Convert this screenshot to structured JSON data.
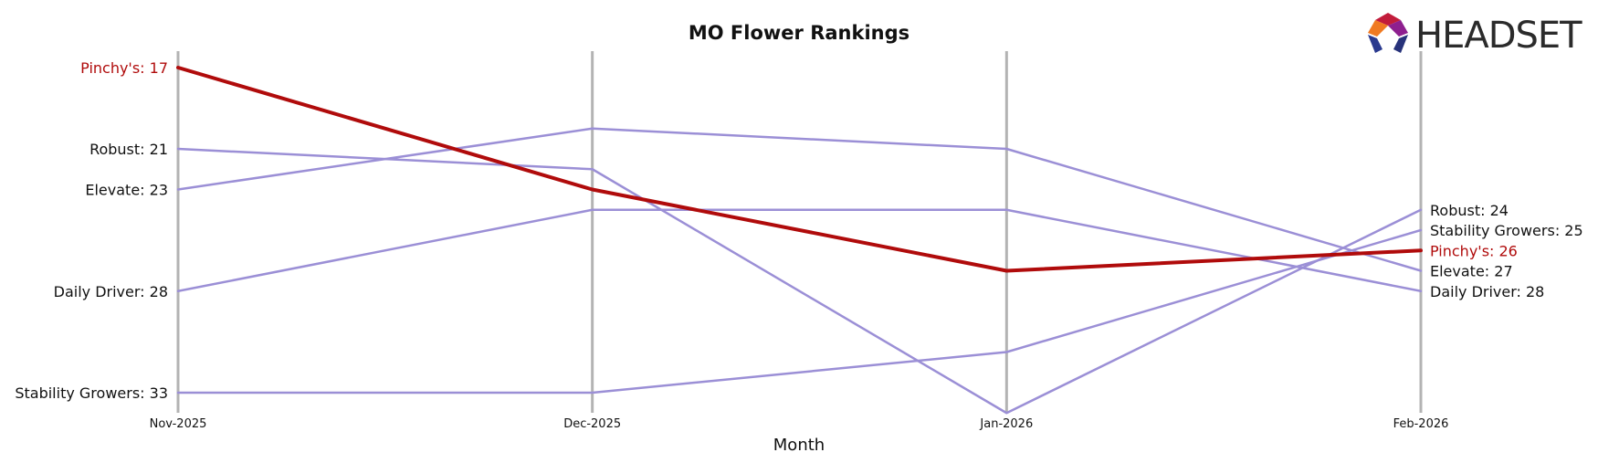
{
  "chart_data": {
    "type": "line",
    "title": "MO Flower Rankings",
    "xlabel": "Month",
    "ylabel": "",
    "categories": [
      "Nov-2025",
      "Dec-2025",
      "Jan-2026",
      "Feb-2026"
    ],
    "ylim": [
      33.9,
      16.2
    ],
    "y_inverted": true,
    "grid": false,
    "series": [
      {
        "name": "Pinchy's",
        "values": [
          17,
          23,
          27,
          26
        ],
        "color": "#b00b0b",
        "highlight": true,
        "start_label": "Pinchy's: 17",
        "end_label": "Pinchy's: 26"
      },
      {
        "name": "Robust",
        "values": [
          21,
          22,
          34,
          24
        ],
        "color": "#9b8fd6",
        "highlight": false,
        "start_label": "Robust: 21",
        "end_label": "Robust: 24"
      },
      {
        "name": "Elevate",
        "values": [
          23,
          20,
          21,
          27
        ],
        "color": "#9b8fd6",
        "highlight": false,
        "start_label": "Elevate: 23",
        "end_label": "Elevate: 27"
      },
      {
        "name": "Daily Driver",
        "values": [
          28,
          24,
          24,
          28
        ],
        "color": "#9b8fd6",
        "highlight": false,
        "start_label": "Daily Driver: 28",
        "end_label": "Daily Driver: 28"
      },
      {
        "name": "Stability Growers",
        "values": [
          33,
          33,
          31,
          25
        ],
        "color": "#9b8fd6",
        "highlight": false,
        "start_label": "Stability Growers: 33",
        "end_label": "Stability Growers: 25"
      }
    ]
  },
  "logo": {
    "text": "HEADSET"
  }
}
